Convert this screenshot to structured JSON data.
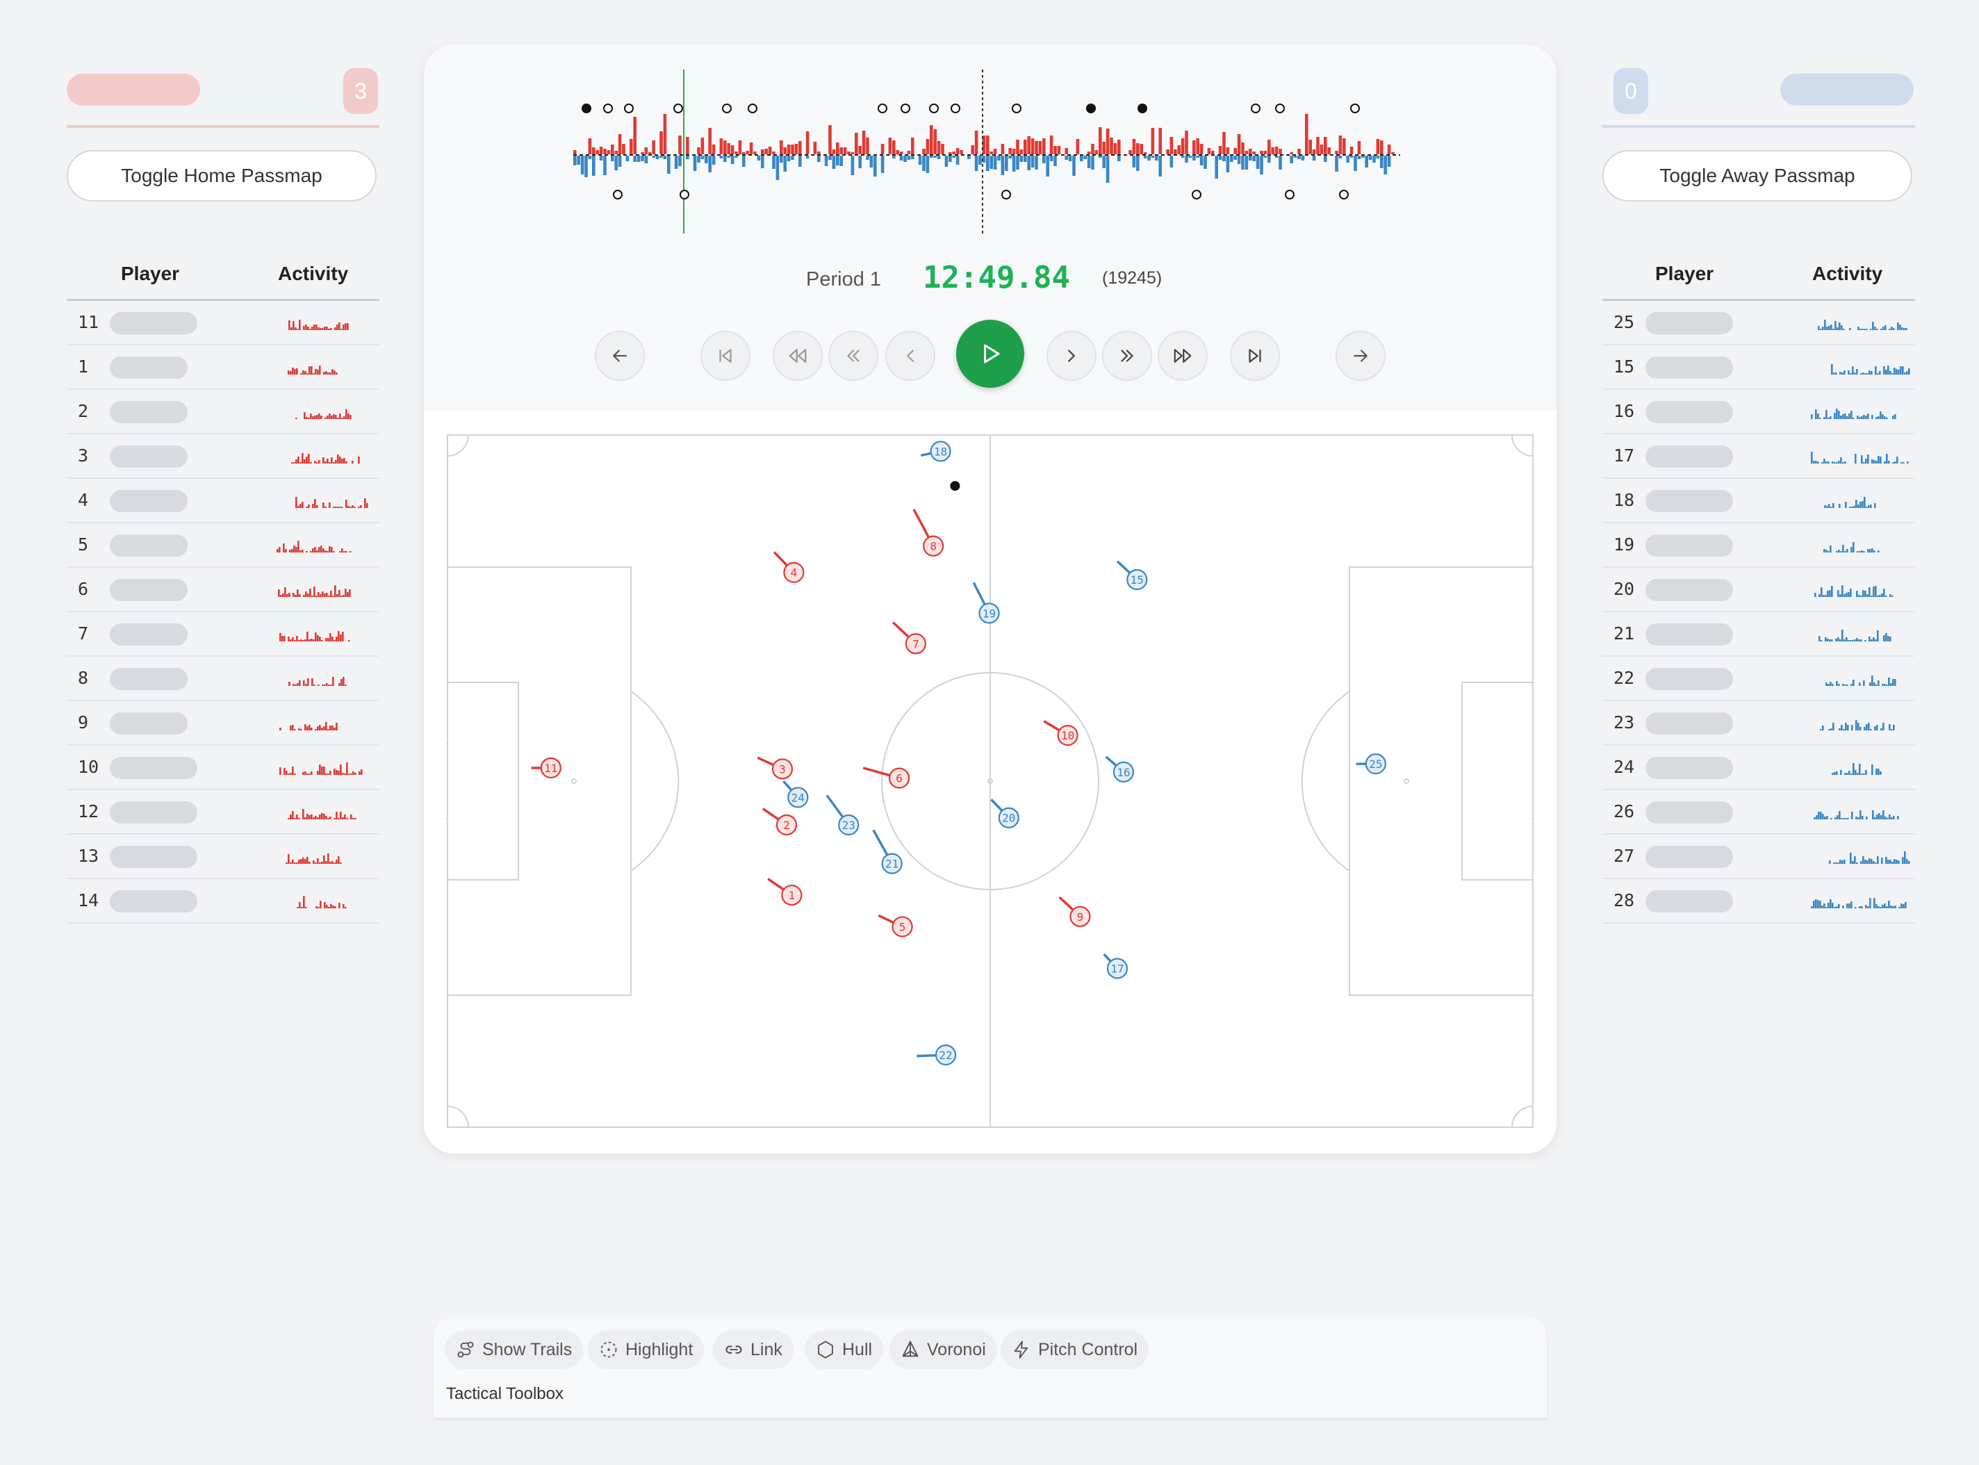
{
  "colors": {
    "home": "#e03a34",
    "away": "#3a87c4",
    "home_soft": "#f3caca",
    "away_soft": "#cfdcec",
    "accent": "#1e9e4a"
  },
  "home": {
    "score": "3",
    "toggle_label": "Toggle Home Passmap",
    "col_player": "Player",
    "col_activity": "Activity",
    "players": [
      {
        "num": "11",
        "pill": 126
      },
      {
        "num": "1",
        "pill": 112
      },
      {
        "num": "2",
        "pill": 112
      },
      {
        "num": "3",
        "pill": 112
      },
      {
        "num": "4",
        "pill": 112
      },
      {
        "num": "5",
        "pill": 112
      },
      {
        "num": "6",
        "pill": 112
      },
      {
        "num": "7",
        "pill": 112
      },
      {
        "num": "8",
        "pill": 112
      },
      {
        "num": "9",
        "pill": 112
      },
      {
        "num": "10",
        "pill": 126
      },
      {
        "num": "12",
        "pill": 126
      },
      {
        "num": "13",
        "pill": 126
      },
      {
        "num": "14",
        "pill": 126
      }
    ]
  },
  "away": {
    "score": "0",
    "toggle_label": "Toggle Away Passmap",
    "col_player": "Player",
    "col_activity": "Activity",
    "players": [
      {
        "num": "25",
        "pill": 126
      },
      {
        "num": "15",
        "pill": 126
      },
      {
        "num": "16",
        "pill": 126
      },
      {
        "num": "17",
        "pill": 126
      },
      {
        "num": "18",
        "pill": 126
      },
      {
        "num": "19",
        "pill": 126
      },
      {
        "num": "20",
        "pill": 126
      },
      {
        "num": "21",
        "pill": 126
      },
      {
        "num": "22",
        "pill": 126
      },
      {
        "num": "23",
        "pill": 126
      },
      {
        "num": "24",
        "pill": 126
      },
      {
        "num": "26",
        "pill": 126
      },
      {
        "num": "27",
        "pill": 126
      },
      {
        "num": "28",
        "pill": 126
      }
    ]
  },
  "clock": {
    "period": "Period 1",
    "time": "12:49.84",
    "frame": "(19245)"
  },
  "controls": [
    {
      "name": "step-back-arrow",
      "icon": "arrow-left-icon"
    },
    {
      "name": "skip-to-start",
      "icon": "skip-back-icon"
    },
    {
      "name": "fast-rewind",
      "icon": "rewind-icon"
    },
    {
      "name": "rewind",
      "icon": "chevrons-left-icon"
    },
    {
      "name": "step-back",
      "icon": "chevron-left-icon"
    },
    {
      "name": "step-forward",
      "icon": "chevron-right-icon"
    },
    {
      "name": "forward",
      "icon": "chevrons-right-icon"
    },
    {
      "name": "fast-forward",
      "icon": "fast-forward-icon"
    },
    {
      "name": "skip-to-end",
      "icon": "skip-forward-icon"
    },
    {
      "name": "step-forward-arrow",
      "icon": "arrow-right-icon"
    }
  ],
  "toolbox": {
    "label": "Tactical Toolbox",
    "tools": [
      {
        "label": "Show Trails",
        "icon": "trails-icon"
      },
      {
        "label": "Highlight",
        "icon": "highlight-icon"
      },
      {
        "label": "Link",
        "icon": "link-icon"
      },
      {
        "label": "Hull",
        "icon": "hexagon-icon"
      },
      {
        "label": "Voronoi",
        "icon": "voronoi-icon"
      },
      {
        "label": "Pitch Control",
        "icon": "lightning-icon"
      }
    ]
  },
  "pitch": {
    "length_m": 105,
    "width_m": 68,
    "ball": {
      "x": 49.1,
      "y": 5.0
    },
    "home_players": [
      {
        "num": "11",
        "x": 10.0,
        "y": 32.7,
        "dx": -1.9,
        "dy": 0
      },
      {
        "num": "4",
        "x": 33.5,
        "y": 13.5,
        "dx": -1.9,
        "dy": -2.0
      },
      {
        "num": "8",
        "x": 47.0,
        "y": 10.9,
        "dx": -1.9,
        "dy": -3.6
      },
      {
        "num": "7",
        "x": 45.3,
        "y": 20.5,
        "dx": -2.2,
        "dy": -2.1
      },
      {
        "num": "3",
        "x": 32.4,
        "y": 32.8,
        "dx": -2.4,
        "dy": -1.1
      },
      {
        "num": "6",
        "x": 43.7,
        "y": 33.7,
        "dx": -3.5,
        "dy": -1.0
      },
      {
        "num": "2",
        "x": 32.8,
        "y": 38.3,
        "dx": -2.3,
        "dy": -1.6
      },
      {
        "num": "1",
        "x": 33.3,
        "y": 45.2,
        "dx": -2.3,
        "dy": -1.6
      },
      {
        "num": "5",
        "x": 44.0,
        "y": 48.3,
        "dx": -2.3,
        "dy": -1.1
      },
      {
        "num": "10",
        "x": 60.0,
        "y": 29.5,
        "dx": -2.3,
        "dy": -1.4
      },
      {
        "num": "9",
        "x": 61.2,
        "y": 47.3,
        "dx": -2.0,
        "dy": -1.9
      }
    ],
    "away_players": [
      {
        "num": "18",
        "x": 47.7,
        "y": 1.6,
        "dx": -1.9,
        "dy": 0.4
      },
      {
        "num": "19",
        "x": 52.4,
        "y": 17.5,
        "dx": -1.5,
        "dy": -3.0
      },
      {
        "num": "15",
        "x": 66.7,
        "y": 14.2,
        "dx": -1.9,
        "dy": -1.8
      },
      {
        "num": "24",
        "x": 33.9,
        "y": 35.6,
        "dx": -1.4,
        "dy": -1.6
      },
      {
        "num": "23",
        "x": 38.8,
        "y": 38.3,
        "dx": -2.1,
        "dy": -2.9
      },
      {
        "num": "21",
        "x": 43.0,
        "y": 42.1,
        "dx": -1.8,
        "dy": -3.3
      },
      {
        "num": "20",
        "x": 54.3,
        "y": 37.6,
        "dx": -1.7,
        "dy": -1.8
      },
      {
        "num": "16",
        "x": 65.4,
        "y": 33.1,
        "dx": -1.7,
        "dy": -1.5
      },
      {
        "num": "17",
        "x": 64.8,
        "y": 52.4,
        "dx": -1.3,
        "dy": -1.4
      },
      {
        "num": "25",
        "x": 89.8,
        "y": 32.3,
        "dx": -1.9,
        "dy": 0
      },
      {
        "num": "22",
        "x": 48.2,
        "y": 60.9,
        "dx": -2.8,
        "dy": 0.1
      }
    ]
  }
}
